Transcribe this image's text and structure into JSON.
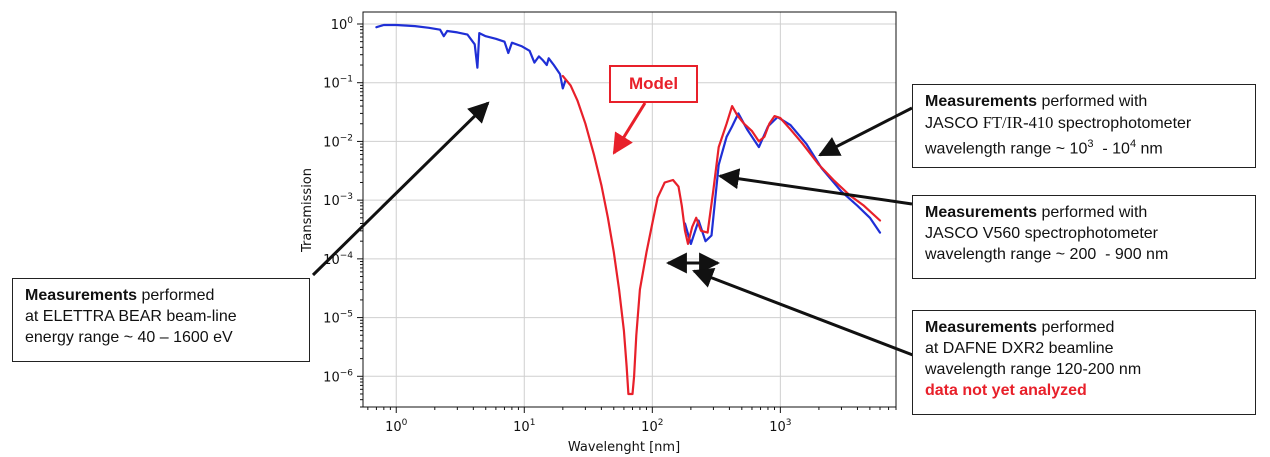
{
  "chart_data": {
    "type": "line",
    "xlabel": "Wavelenght [nm]",
    "ylabel": "Transmission",
    "xscale": "log",
    "yscale": "log",
    "xlim": [
      0.55,
      8000
    ],
    "ylim": [
      3e-07,
      1.6
    ],
    "grid": true,
    "x_ticks": [
      {
        "base": "10",
        "exp": "0"
      },
      {
        "base": "10",
        "exp": "1"
      },
      {
        "base": "10",
        "exp": "2"
      },
      {
        "base": "10",
        "exp": "3"
      }
    ],
    "y_ticks": [
      {
        "base": "10",
        "exp": "0"
      },
      {
        "base": "10",
        "exp": "−1"
      },
      {
        "base": "10",
        "exp": "−2"
      },
      {
        "base": "10",
        "exp": "−3"
      },
      {
        "base": "10",
        "exp": "−4"
      },
      {
        "base": "10",
        "exp": "−5"
      },
      {
        "base": "10",
        "exp": "−6"
      }
    ],
    "series": [
      {
        "color": "#1f2fd6",
        "points": [
          [
            0.7,
            0.88
          ],
          [
            0.8,
            0.96
          ],
          [
            1.0,
            0.96
          ],
          [
            1.4,
            0.92
          ],
          [
            1.8,
            0.86
          ],
          [
            2.2,
            0.8
          ],
          [
            2.35,
            0.62
          ],
          [
            2.5,
            0.76
          ],
          [
            3.0,
            0.72
          ],
          [
            3.6,
            0.66
          ],
          [
            4.1,
            0.45
          ],
          [
            4.3,
            0.18
          ],
          [
            4.45,
            0.7
          ],
          [
            5.0,
            0.62
          ],
          [
            6.0,
            0.56
          ],
          [
            7.0,
            0.5
          ],
          [
            7.5,
            0.32
          ],
          [
            8.0,
            0.48
          ],
          [
            9.5,
            0.42
          ],
          [
            11.0,
            0.35
          ],
          [
            12.0,
            0.22
          ],
          [
            13.0,
            0.28
          ],
          [
            14.0,
            0.24
          ],
          [
            15.0,
            0.2
          ],
          [
            15.5,
            0.26
          ],
          [
            17.0,
            0.2
          ],
          [
            19.0,
            0.14
          ],
          [
            20.0,
            0.08
          ],
          [
            21.0,
            0.11
          ],
          [
            180,
            0.0004
          ],
          [
            200,
            0.00018
          ],
          [
            230,
            0.00045
          ],
          [
            260,
            0.0002
          ],
          [
            290,
            0.00025
          ],
          [
            330,
            0.004
          ],
          [
            380,
            0.012
          ],
          [
            420,
            0.018
          ],
          [
            470,
            0.03
          ],
          [
            550,
            0.016
          ],
          [
            680,
            0.008
          ],
          [
            800,
            0.018
          ],
          [
            950,
            0.026
          ],
          [
            1200,
            0.019
          ],
          [
            1600,
            0.009
          ],
          [
            2100,
            0.0035
          ],
          [
            3000,
            0.0014
          ],
          [
            4000,
            0.0008
          ],
          [
            5000,
            0.0005
          ],
          [
            6000,
            0.00028
          ]
        ]
      },
      {
        "color": "#e8202a",
        "points": [
          [
            20,
            0.13
          ],
          [
            23,
            0.09
          ],
          [
            26,
            0.05
          ],
          [
            30,
            0.02
          ],
          [
            35,
            0.006
          ],
          [
            40,
            0.0018
          ],
          [
            45,
            0.0005
          ],
          [
            50,
            0.00013
          ],
          [
            55,
            3e-05
          ],
          [
            60,
            6e-06
          ],
          [
            63,
            1.5e-06
          ],
          [
            65,
            5e-07
          ],
          [
            70,
            5e-07
          ],
          [
            72,
            1e-06
          ],
          [
            75,
            5e-06
          ],
          [
            80,
            3e-05
          ],
          [
            90,
            0.00013
          ],
          [
            100,
            0.0004
          ],
          [
            110,
            0.0011
          ],
          [
            125,
            0.002
          ],
          [
            145,
            0.0022
          ],
          [
            160,
            0.0017
          ],
          [
            170,
            0.0008
          ],
          [
            180,
            0.0003
          ],
          [
            190,
            0.00018
          ],
          [
            205,
            0.00035
          ],
          [
            220,
            0.0005
          ],
          [
            240,
            0.0003
          ],
          [
            270,
            0.00028
          ],
          [
            300,
            0.0015
          ],
          [
            330,
            0.008
          ],
          [
            380,
            0.02
          ],
          [
            420,
            0.04
          ],
          [
            460,
            0.028
          ],
          [
            520,
            0.02
          ],
          [
            600,
            0.015
          ],
          [
            680,
            0.01
          ],
          [
            750,
            0.012
          ],
          [
            820,
            0.02
          ],
          [
            900,
            0.027
          ],
          [
            1000,
            0.025
          ],
          [
            1200,
            0.016
          ],
          [
            1500,
            0.009
          ],
          [
            2000,
            0.004
          ],
          [
            2600,
            0.0022
          ],
          [
            3500,
            0.0012
          ],
          [
            4500,
            0.0008
          ],
          [
            6000,
            0.00045
          ]
        ]
      }
    ]
  },
  "annotations": {
    "model_label": "Model",
    "box1": {
      "bold": "Measurements",
      "rest": " performed",
      "line2": "at ELETTRA BEAR beam-line",
      "line3": "energy range ~ 40 – 1600 eV"
    },
    "box2": {
      "bold": "Measurements",
      "rest": " performed with",
      "line2_pre": "JASCO ",
      "line2_serif": "FT/IR-410",
      "line2_post": " spectrophotometer",
      "line3_pre": "wavelength range ~ 10",
      "line3_sup1": "3",
      "line3_mid": "  - 10",
      "line3_sup2": "4",
      "line3_post": " nm"
    },
    "box3": {
      "bold": "Measurements",
      "rest": " performed with",
      "line2": "JASCO V560 spectrophotometer",
      "line3": "wavelength range ~ 200  - 900 nm"
    },
    "box4": {
      "bold": "Measurements",
      "rest": " performed",
      "line2": "at DAFNE DXR2 beamline",
      "line3": "wavelength range 120-200 nm",
      "line4": "data not yet analyzed"
    }
  }
}
